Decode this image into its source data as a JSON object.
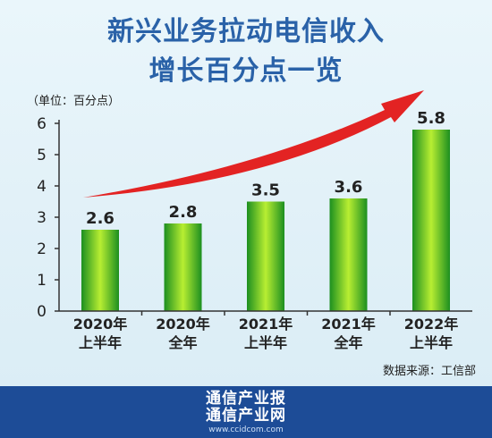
{
  "title": {
    "line1": "新兴业务拉动电信收入",
    "line2": "增长百分点一览"
  },
  "unit_label": "（单位：百分点）",
  "source": "数据来源：工信部",
  "footer": {
    "name1": "通信产业报",
    "name2": "通信产业网",
    "url": "www.ccidcom.com"
  },
  "colors": {
    "title": "#2a62a8",
    "bar_edge": "#1c8f20",
    "bar_center": "#b8ee32",
    "arrow": "#e32323",
    "footer_bg": "#1d4c97"
  },
  "chart_data": {
    "type": "bar",
    "categories": [
      [
        "2020年",
        "上半年"
      ],
      [
        "2020年",
        "全年"
      ],
      [
        "2021年",
        "上半年"
      ],
      [
        "2021年",
        "全年"
      ],
      [
        "2022年",
        "上半年"
      ]
    ],
    "values": [
      2.6,
      2.8,
      3.5,
      3.6,
      5.8
    ],
    "value_labels": [
      "2.6",
      "2.8",
      "3.5",
      "3.6",
      "5.8"
    ],
    "yticks": [
      "0",
      "1",
      "2",
      "3",
      "4",
      "5",
      "6"
    ],
    "ylim": [
      0,
      6
    ],
    "grid": false,
    "trend_arrow": true
  }
}
